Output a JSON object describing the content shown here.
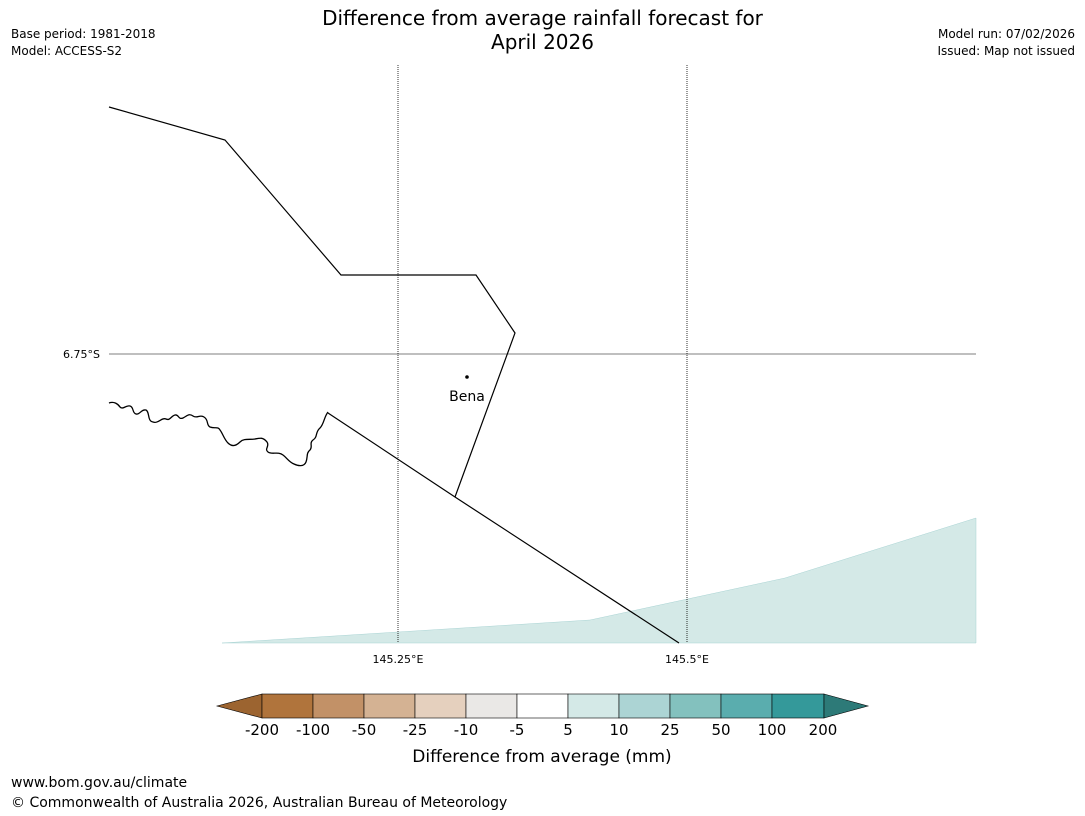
{
  "title": {
    "line1": "Difference from average rainfall forecast for",
    "line2": "April 2026"
  },
  "meta_left": {
    "base_period": "Base period: 1981-2018",
    "model": "Model: ACCESS-S2"
  },
  "meta_right": {
    "model_run": "Model run: 07/02/2026",
    "issued": "Issued: Map not issued"
  },
  "map": {
    "gridlines": {
      "lat_label": "6.75°S",
      "lon_labels": [
        "145.25°E",
        "145.5°E"
      ]
    },
    "place": {
      "name": "Bena"
    },
    "forecast_category_shown": "5 to 10",
    "colors": {
      "forecast_fill": "#d4e9e7",
      "border": "#000000"
    }
  },
  "legend": {
    "title": "Difference from average (mm)",
    "ticks": [
      "-200",
      "-100",
      "-50",
      "-25",
      "-10",
      "-5",
      "5",
      "10",
      "25",
      "50",
      "100",
      "200"
    ],
    "colors": [
      "#9c6430",
      "#b0743c",
      "#c29167",
      "#d4b293",
      "#e5d0be",
      "#eae8e6",
      "#ffffff",
      "#d4e9e7",
      "#acd4d4",
      "#83c1be",
      "#5aadae",
      "#34999a",
      "#2d7a78"
    ]
  },
  "footer": {
    "url": "www.bom.gov.au/climate",
    "copyright": "© Commonwealth of Australia 2026, Australian Bureau of Meteorology"
  }
}
